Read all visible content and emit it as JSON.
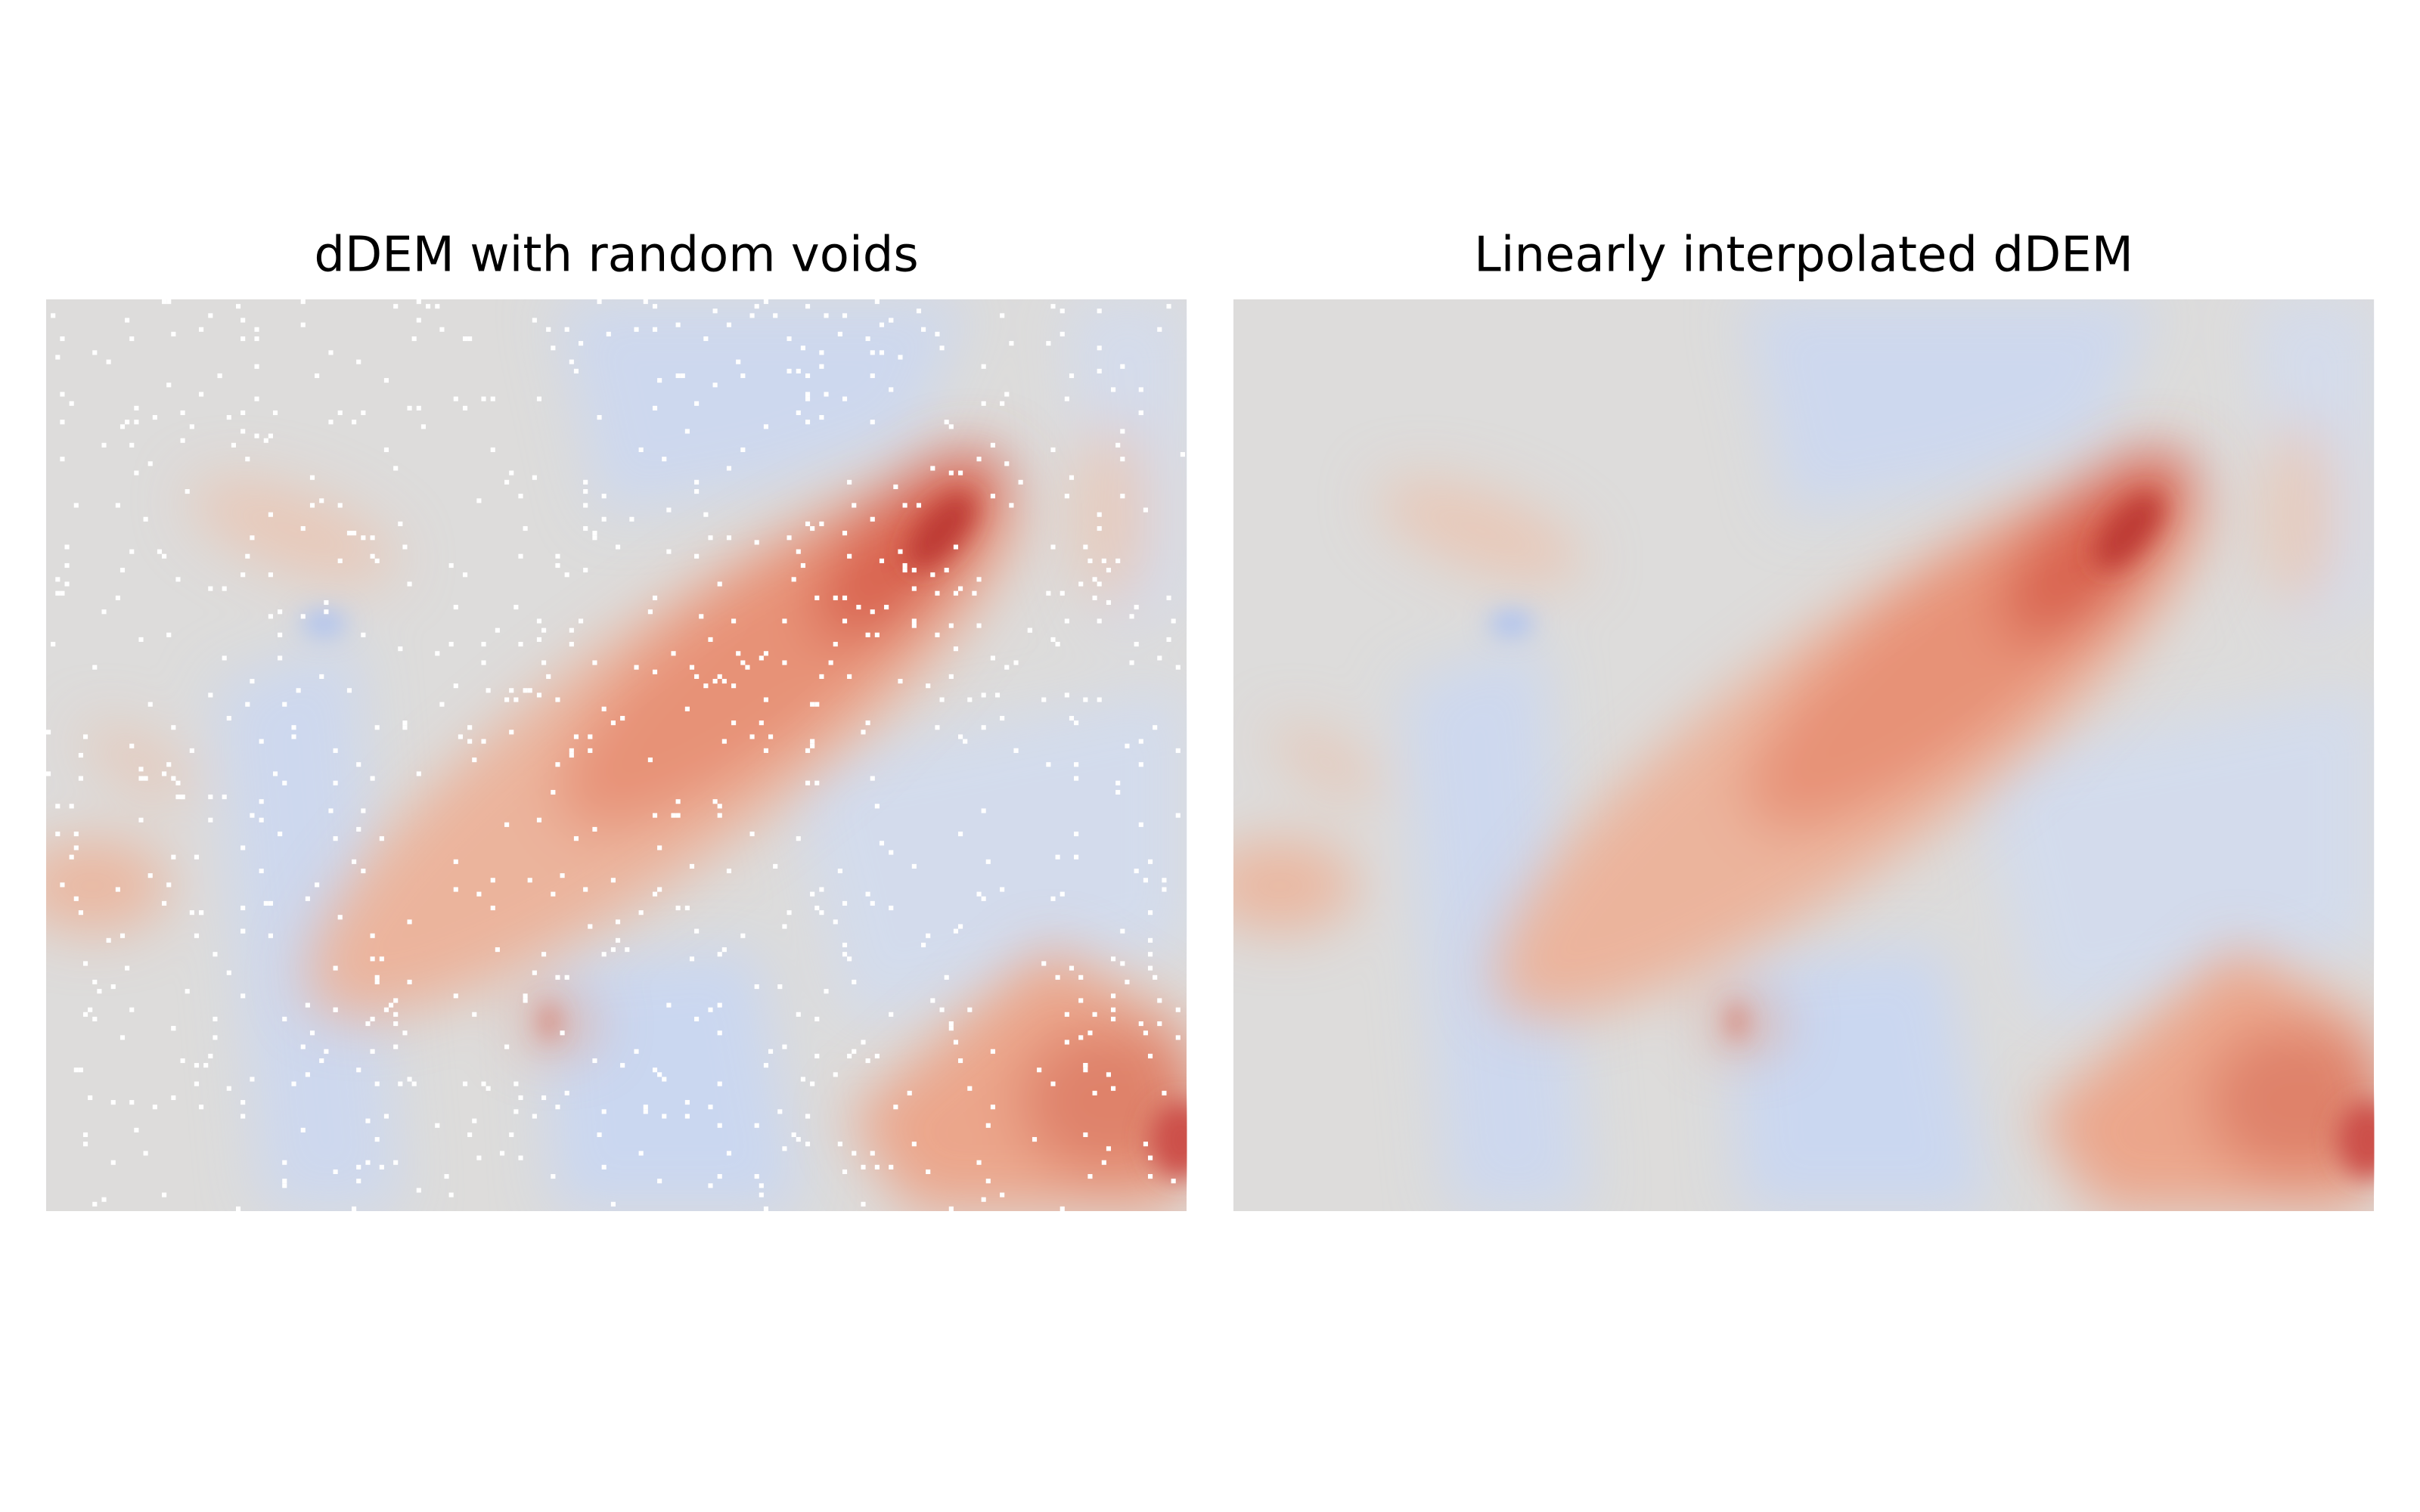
{
  "panels": [
    {
      "title": "dDEM with random voids"
    },
    {
      "title": "Linearly interpolated dDEM"
    }
  ]
}
